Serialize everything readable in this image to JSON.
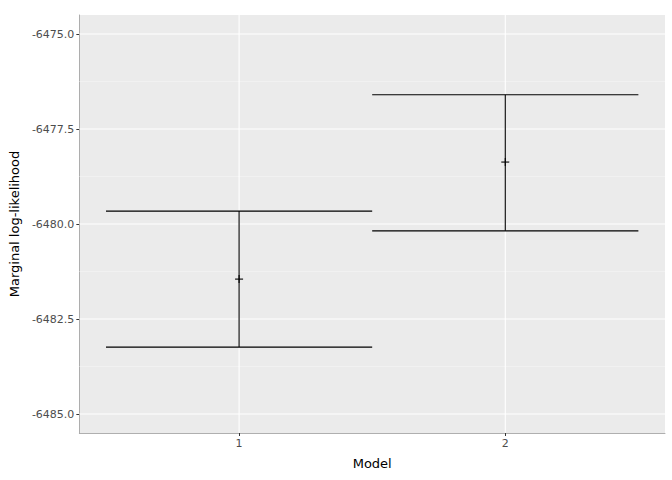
{
  "chart_data": {
    "type": "errorbar",
    "categories": [
      "1",
      "2"
    ],
    "values": [
      -6481.45,
      -6478.37
    ],
    "error_low": [
      -6483.24,
      -6480.18
    ],
    "error_high": [
      -6479.66,
      -6476.6
    ],
    "xlabel": "Model",
    "ylabel": "Marginal log-likelihood",
    "ylim": [
      -6485.5,
      -6474.5
    ],
    "yticks": [
      {
        "value": -6485,
        "label": "-6485.0"
      },
      {
        "value": -6482.5,
        "label": "-6482.5"
      },
      {
        "value": -6480,
        "label": "-6480.0"
      },
      {
        "value": -6477.5,
        "label": "-6477.5"
      },
      {
        "value": -6475,
        "label": "-6475.0"
      }
    ],
    "grid": true,
    "color": "#000000",
    "marker": "cross"
  }
}
